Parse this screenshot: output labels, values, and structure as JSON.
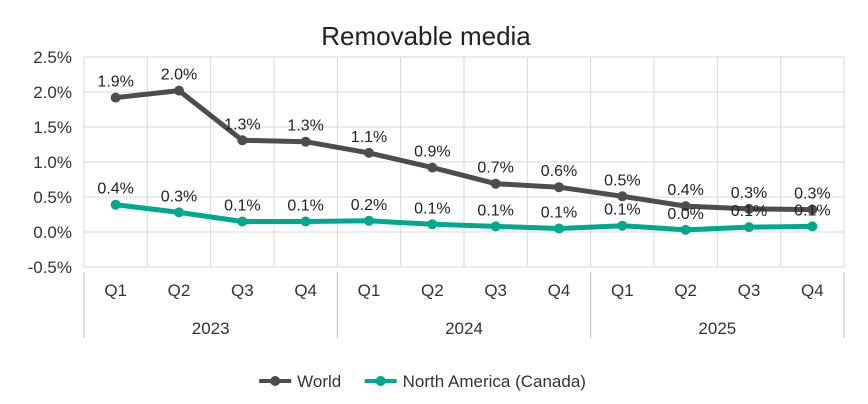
{
  "chart_data": {
    "type": "line",
    "title": "Removable media",
    "categories": [
      "Q1",
      "Q2",
      "Q3",
      "Q4",
      "Q1",
      "Q2",
      "Q3",
      "Q4",
      "Q1",
      "Q2",
      "Q3",
      "Q4"
    ],
    "groups": [
      {
        "label": "2023",
        "span": 4
      },
      {
        "label": "2024",
        "span": 4
      },
      {
        "label": "2025",
        "span": 4
      }
    ],
    "ylim": [
      -0.5,
      2.5
    ],
    "yticks": [
      {
        "value": 2.5,
        "label": "2.5%"
      },
      {
        "value": 2.0,
        "label": "2.0%"
      },
      {
        "value": 1.5,
        "label": "1.5%"
      },
      {
        "value": 1.0,
        "label": "1.0%"
      },
      {
        "value": 0.5,
        "label": "0.5%"
      },
      {
        "value": 0.0,
        "label": "0.0%"
      },
      {
        "value": -0.5,
        "label": "-0.5%"
      }
    ],
    "series": [
      {
        "name": "World",
        "color": "#4d4d4d",
        "values": [
          1.92,
          2.02,
          1.31,
          1.29,
          1.13,
          0.92,
          0.69,
          0.64,
          0.51,
          0.37,
          0.33,
          0.32
        ],
        "labels": [
          "1.9%",
          "2.0%",
          "1.3%",
          "1.3%",
          "1.1%",
          "0.9%",
          "0.7%",
          "0.6%",
          "0.5%",
          "0.4%",
          "0.3%",
          "0.3%"
        ]
      },
      {
        "name": "North America (Canada)",
        "color": "#00a88e",
        "values": [
          0.39,
          0.28,
          0.15,
          0.15,
          0.16,
          0.11,
          0.08,
          0.05,
          0.09,
          0.03,
          0.07,
          0.08
        ],
        "labels": [
          "0.4%",
          "0.3%",
          "0.1%",
          "0.1%",
          "0.2%",
          "0.1%",
          "0.1%",
          "0.1%",
          "0.1%",
          "0.0%",
          "0.1%",
          "0.1%"
        ]
      }
    ],
    "legend_position": "bottom"
  }
}
